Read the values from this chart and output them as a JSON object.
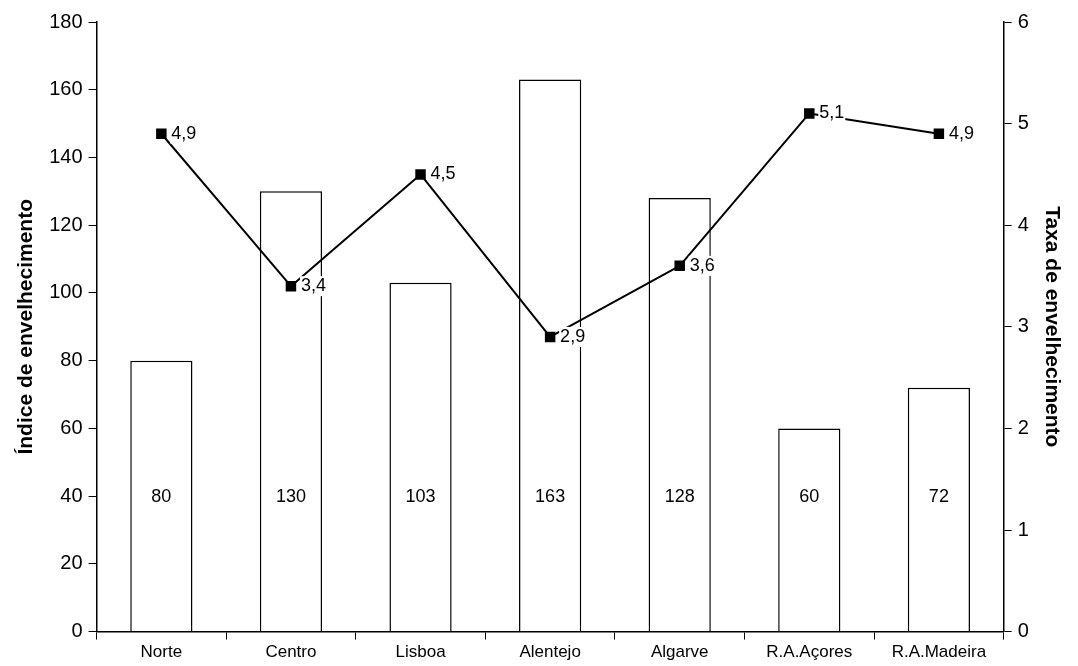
{
  "chart_data": {
    "type": "bar",
    "categories": [
      "Norte",
      "Centro",
      "Lisboa",
      "Alentejo",
      "Algarve",
      "R.A.Açores",
      "R.A.Madeira"
    ],
    "series": [
      {
        "color": "#ffffff",
        "values": [
          80,
          130,
          103,
          163,
          128,
          60,
          72
        ],
        "value_labels": [
          "80",
          "130",
          "103",
          "163",
          "128",
          "60",
          "72"
        ]
      },
      {
        "type": "line",
        "axis": "y2",
        "color": "#000000",
        "values": [
          4.9,
          3.4,
          4.5,
          2.9,
          3.6,
          5.1,
          4.9
        ],
        "value_labels": [
          "4,9",
          "3,4",
          "4,5",
          "2,9",
          "3,6",
          "5,1",
          "4,9"
        ]
      }
    ],
    "ylabel": "Índice de envelhecimento",
    "y2label": "Taxa de envelhecimento",
    "ylim": [
      0,
      180
    ],
    "yticks": [
      0,
      20,
      40,
      60,
      80,
      100,
      120,
      140,
      160,
      180
    ],
    "y2lim": [
      0,
      6
    ],
    "y2ticks": [
      0,
      1,
      2,
      3,
      4,
      5,
      6
    ],
    "grid": false,
    "legend": false,
    "marker": "square",
    "line_style": "solid"
  }
}
